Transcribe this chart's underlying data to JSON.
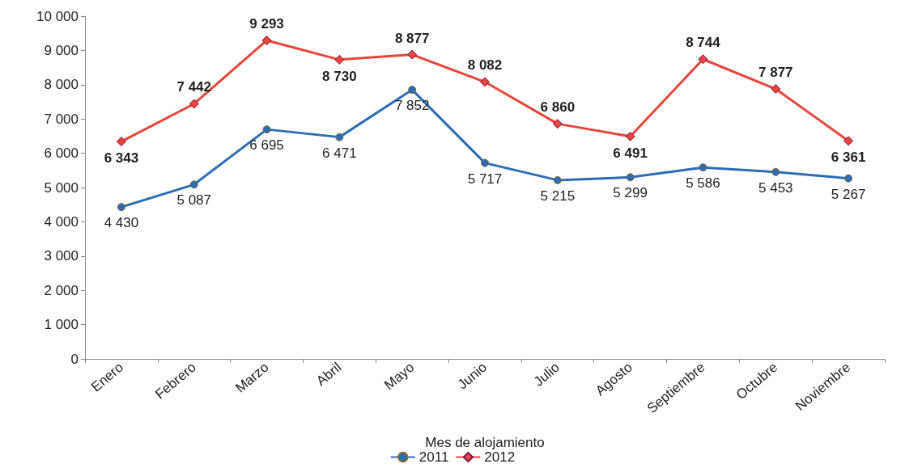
{
  "chart_data": {
    "type": "line",
    "xlabel": "Mes de alojamiento",
    "categories": [
      "Enero",
      "Febrero",
      "Marzo",
      "Abril",
      "Mayo",
      "Junio",
      "Julio",
      "Agosto",
      "Septiembre",
      "Octubre",
      "Noviembre"
    ],
    "series": [
      {
        "name": "2011",
        "color": "#2e6db4",
        "marker": "circle",
        "values": [
          4430,
          5087,
          6695,
          6471,
          7852,
          5717,
          5215,
          5299,
          5586,
          5453,
          5267
        ],
        "value_labels": [
          "4 430",
          "5 087",
          "6 695",
          "6 471",
          "7 852",
          "5 717",
          "5 215",
          "5 299",
          "5 586",
          "5 453",
          "5 267"
        ]
      },
      {
        "name": "2012",
        "color": "#e8453c",
        "marker": "diamond",
        "values": [
          6343,
          7442,
          9293,
          8730,
          8877,
          8082,
          6860,
          6491,
          8744,
          7877,
          6361
        ],
        "value_labels": [
          "6 343",
          "7 442",
          "9 293",
          "8 730",
          "8 877",
          "8 082",
          "6 860",
          "6 491",
          "8 744",
          "7 877",
          "6 361"
        ]
      }
    ],
    "ylim": [
      0,
      10000
    ],
    "yticks": [
      0,
      {
        "value": 1000,
        "label": "1 000"
      },
      {
        "value": 2000,
        "label": "2 000"
      },
      {
        "value": 3000,
        "label": "3 000"
      },
      {
        "value": 4000,
        "label": "4 000"
      },
      {
        "value": 5000,
        "label": "5 000"
      },
      {
        "value": 6000,
        "label": "6 000"
      },
      {
        "value": 7000,
        "label": "7 000"
      },
      {
        "value": 8000,
        "label": "8 000"
      },
      {
        "value": 9000,
        "label": "9 000"
      },
      {
        "value": 10000,
        "label": "10 000"
      }
    ],
    "grid": false,
    "legend": "bottom"
  }
}
